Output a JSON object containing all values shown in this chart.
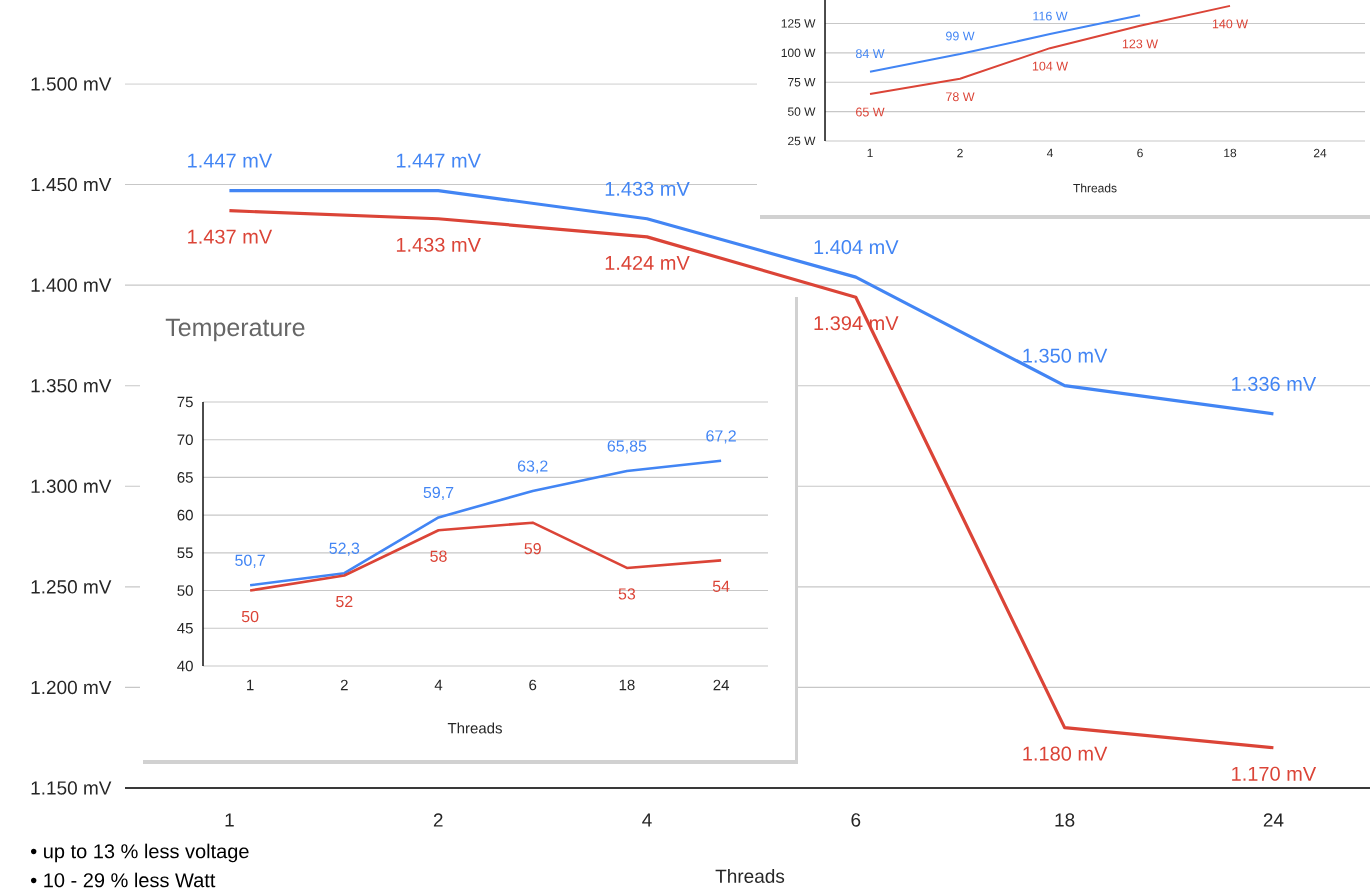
{
  "chart_data": [
    {
      "type": "line",
      "categories": [
        "1",
        "2",
        "4",
        "6",
        "18",
        "24"
      ],
      "xlabel": "Threads",
      "ylim": [
        1150,
        1500
      ],
      "yticks": [
        {
          "value": 1150,
          "label": "1.150 mV"
        },
        {
          "value": 1200,
          "label": "1.200 mV"
        },
        {
          "value": 1250,
          "label": "1.250 mV"
        },
        {
          "value": 1300,
          "label": "1.300 mV"
        },
        {
          "value": 1350,
          "label": "1.350 mV"
        },
        {
          "value": 1400,
          "label": "1.400 mV"
        },
        {
          "value": 1450,
          "label": "1.450 mV"
        },
        {
          "value": 1500,
          "label": "1.500 mV"
        }
      ],
      "grid": "y",
      "series": [
        {
          "color": "#4285f4",
          "values": [
            1447,
            1447,
            1433,
            1404,
            1350,
            1336
          ],
          "value_labels": [
            "1.447 mV",
            "1.447 mV",
            "1.433 mV",
            "1.404 mV",
            "1.350 mV",
            "1.336 mV"
          ]
        },
        {
          "color": "#db4437",
          "values": [
            1437,
            1433,
            1424,
            1394,
            1180,
            1170
          ],
          "value_labels": [
            "1.437 mV",
            "1.433 mV",
            "1.424 mV",
            "1.394 mV",
            "1.180 mV",
            "1.170 mV"
          ]
        }
      ],
      "annotations": [
        "• up to 13 % less voltage",
        "• 10 - 29 % less Watt"
      ]
    },
    {
      "type": "line",
      "title": "Temperature",
      "categories": [
        "1",
        "2",
        "4",
        "6",
        "18",
        "24"
      ],
      "xlabel": "Threads",
      "ylim": [
        40,
        75
      ],
      "yticks": [
        40,
        45,
        50,
        55,
        60,
        65,
        70,
        75
      ],
      "grid": "y",
      "series": [
        {
          "color": "#4285f4",
          "values": [
            50.7,
            52.3,
            59.7,
            63.2,
            65.85,
            67.2
          ],
          "value_labels": [
            "50,7",
            "52,3",
            "59,7",
            "63,2",
            "65,85",
            "67,2"
          ]
        },
        {
          "color": "#db4437",
          "values": [
            50,
            52,
            58,
            59,
            53,
            54
          ],
          "value_labels": [
            "50",
            "52",
            "58",
            "59",
            "53",
            "54"
          ]
        }
      ]
    },
    {
      "type": "line",
      "categories": [
        "1",
        "2",
        "4",
        "6",
        "18",
        "24"
      ],
      "xlabel": "Threads",
      "ylim": [
        25,
        145
      ],
      "yticks": [
        {
          "value": 25,
          "label": "25 W"
        },
        {
          "value": 50,
          "label": "50 W"
        },
        {
          "value": 75,
          "label": "75 W"
        },
        {
          "value": 100,
          "label": "100 W"
        },
        {
          "value": 125,
          "label": "125 W"
        }
      ],
      "grid": "y",
      "series": [
        {
          "color": "#4285f4",
          "values": [
            84,
            99,
            116,
            132,
            null,
            null
          ],
          "value_labels": [
            "84 W",
            "99 W",
            "116 W",
            null,
            null,
            null
          ]
        },
        {
          "color": "#db4437",
          "values": [
            65,
            78,
            104,
            123,
            140,
            null
          ],
          "value_labels": [
            "65 W",
            "78 W",
            "104 W",
            "123 W",
            "140 W",
            null
          ]
        }
      ]
    }
  ]
}
